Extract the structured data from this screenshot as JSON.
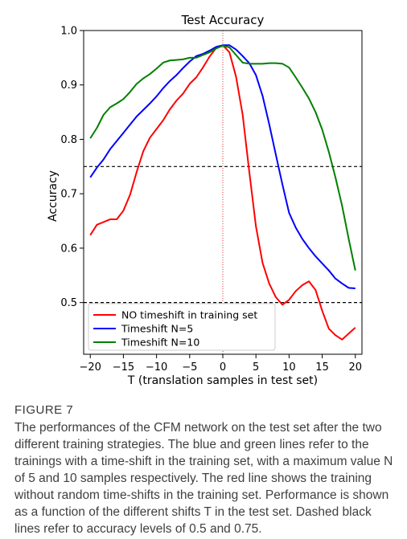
{
  "chart_data": {
    "type": "line",
    "title": "Test Accuracy",
    "xlabel": "T  (translation samples in test set)",
    "ylabel": "Accuracy",
    "xlim": [
      -21,
      21
    ],
    "ylim": [
      0.405,
      1.0
    ],
    "xticks": [
      -20,
      -15,
      -10,
      -5,
      0,
      5,
      10,
      15,
      20
    ],
    "xtick_labels": [
      "−20",
      "−15",
      "−10",
      "−5",
      "0",
      "5",
      "10",
      "15",
      "20"
    ],
    "yticks": [
      0.5,
      0.6,
      0.7,
      0.8,
      0.9,
      1.0
    ],
    "ytick_labels": [
      "0.5",
      "0.6",
      "0.7",
      "0.8",
      "0.9",
      "1.0"
    ],
    "grid": false,
    "legend_position": "lower-left",
    "reference_lines": {
      "horizontal": [
        {
          "y": 0.75,
          "style": "dashed",
          "color": "#000000"
        },
        {
          "y": 0.5,
          "style": "dashed",
          "color": "#000000"
        }
      ],
      "vertical": [
        {
          "x": 0,
          "style": "dotted",
          "color": "#e03030"
        }
      ]
    },
    "x": [
      -20,
      -19,
      -18,
      -17,
      -16,
      -15,
      -14,
      -13,
      -12,
      -11,
      -10,
      -9,
      -8,
      -7,
      -6,
      -5,
      -4,
      -3,
      -2,
      -1,
      0,
      1,
      2,
      3,
      4,
      5,
      6,
      7,
      8,
      9,
      10,
      11,
      12,
      13,
      14,
      15,
      16,
      17,
      18,
      19,
      20
    ],
    "series": [
      {
        "name": "NO timeshift in training set",
        "color": "#ff0000",
        "values": [
          0.624,
          0.643,
          0.648,
          0.653,
          0.653,
          0.669,
          0.698,
          0.74,
          0.778,
          0.803,
          0.819,
          0.835,
          0.855,
          0.871,
          0.884,
          0.902,
          0.914,
          0.932,
          0.952,
          0.968,
          0.973,
          0.96,
          0.915,
          0.845,
          0.74,
          0.64,
          0.573,
          0.535,
          0.51,
          0.496,
          0.505,
          0.521,
          0.532,
          0.539,
          0.523,
          0.485,
          0.452,
          0.44,
          0.432,
          0.443,
          0.454
        ]
      },
      {
        "name": "Timeshift N=5",
        "color": "#0000ff",
        "values": [
          0.73,
          0.748,
          0.763,
          0.782,
          0.797,
          0.812,
          0.827,
          0.842,
          0.854,
          0.866,
          0.879,
          0.894,
          0.907,
          0.918,
          0.931,
          0.943,
          0.953,
          0.957,
          0.963,
          0.97,
          0.973,
          0.973,
          0.965,
          0.953,
          0.94,
          0.918,
          0.88,
          0.828,
          0.772,
          0.717,
          0.665,
          0.638,
          0.617,
          0.6,
          0.585,
          0.572,
          0.559,
          0.544,
          0.535,
          0.527,
          0.526
        ]
      },
      {
        "name": "Timeshift N=10",
        "color": "#008000",
        "values": [
          0.802,
          0.821,
          0.845,
          0.859,
          0.866,
          0.874,
          0.887,
          0.902,
          0.912,
          0.92,
          0.93,
          0.941,
          0.945,
          0.946,
          0.947,
          0.95,
          0.95,
          0.955,
          0.96,
          0.967,
          0.972,
          0.969,
          0.955,
          0.941,
          0.939,
          0.939,
          0.939,
          0.94,
          0.94,
          0.939,
          0.932,
          0.914,
          0.895,
          0.875,
          0.85,
          0.818,
          0.777,
          0.73,
          0.678,
          0.617,
          0.559
        ]
      }
    ]
  },
  "figure": {
    "label": "FIGURE 7",
    "caption": "The performances of the CFM network on the test set after the two different training strategies. The blue and green lines refer to the trainings with a time-shift in the training set, with a maximum value N of 5 and 10 samples respectively. The red line shows the training without random time-shifts in the training set. Performance is shown as a function of the different shifts T in the test set. Dashed black lines refer to accuracy levels of 0.5 and 0.75."
  }
}
